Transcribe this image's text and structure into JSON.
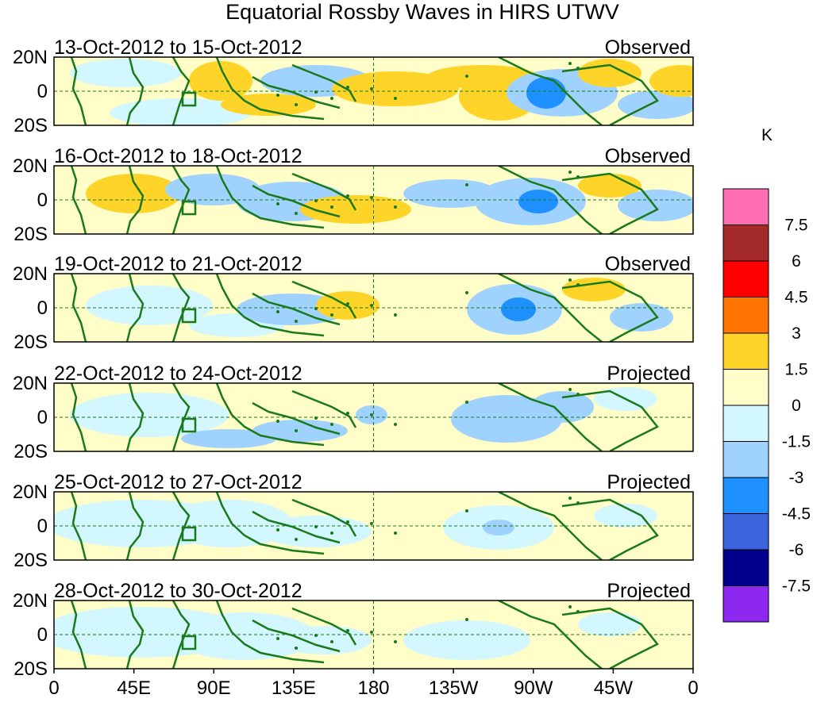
{
  "title": "Equatorial Rossby Waves in HIRS UTWV",
  "unit": "K",
  "lat_labels": [
    "20N",
    "0",
    "20S"
  ],
  "lon_labels": [
    "0",
    "45E",
    "90E",
    "135E",
    "180",
    "135W",
    "90W",
    "45W",
    "0"
  ],
  "panels": [
    {
      "date_range": "13-Oct-2012 to 15-Oct-2012",
      "status": "Observed"
    },
    {
      "date_range": "16-Oct-2012 to 18-Oct-2012",
      "status": "Observed"
    },
    {
      "date_range": "19-Oct-2012 to 21-Oct-2012",
      "status": "Observed"
    },
    {
      "date_range": "22-Oct-2012 to 24-Oct-2012",
      "status": "Projected"
    },
    {
      "date_range": "25-Oct-2012 to 27-Oct-2012",
      "status": "Projected"
    },
    {
      "date_range": "28-Oct-2012 to 30-Oct-2012",
      "status": "Projected"
    }
  ],
  "colorbar": {
    "labels": [
      "7.5",
      "6",
      "4.5",
      "3",
      "1.5",
      "0",
      "-1.5",
      "-3",
      "-4.5",
      "-6",
      "-7.5"
    ],
    "colors": [
      "#FF6EB4",
      "#A52A2A",
      "#FF0000",
      "#FF7300",
      "#FFD428",
      "#FFFDC8",
      "#D2F7FF",
      "#A0D2FF",
      "#1E90FF",
      "#3C64DC",
      "#00008C",
      "#8C28F0"
    ]
  }
}
